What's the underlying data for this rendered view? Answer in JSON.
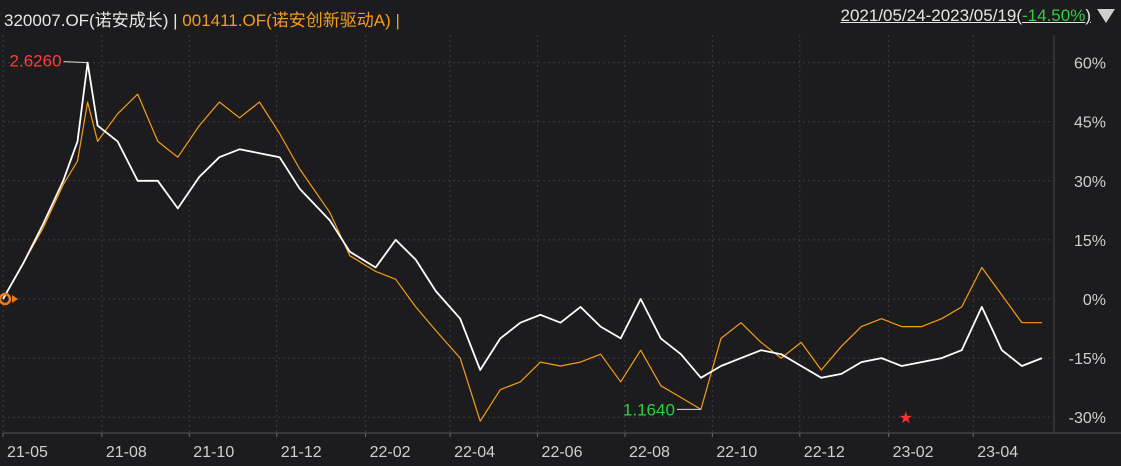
{
  "header": {
    "fund1": "320007.OF(诺安成长)",
    "sep1": "|",
    "fund2": "001411.OF(诺安创新驱动A)",
    "sep2": "|",
    "range": "2021/05/24-2023/05/19(",
    "change": "-14.50%",
    "close": ")"
  },
  "chart_data": {
    "type": "line",
    "x_tick_labels": [
      "21-05",
      "21-08",
      "21-10",
      "21-12",
      "22-02",
      "22-04",
      "22-06",
      "22-08",
      "22-10",
      "22-12",
      "23-02",
      "23-04"
    ],
    "y_tick_labels": [
      "60%",
      "45%",
      "30%",
      "15%",
      "0%",
      "-15%",
      "-30%"
    ],
    "ylim": [
      -34,
      67
    ],
    "xlim": [
      "2021-05-24",
      "2023-05-19"
    ],
    "annotations": {
      "max": "2.6260",
      "min": "1.1640"
    },
    "colors": {
      "fund1": "#ffffff",
      "fund2": "#f59c1a",
      "max": "#ff3b3b",
      "min": "#2fcf3f",
      "grid": "#3c3c3c"
    },
    "series": [
      {
        "name": "320007.OF(诺安成长)",
        "points": [
          [
            "2021-05-24",
            0
          ],
          [
            "2021-06-07",
            9
          ],
          [
            "2021-06-21",
            19
          ],
          [
            "2021-07-05",
            30
          ],
          [
            "2021-07-15",
            40
          ],
          [
            "2021-07-22",
            60
          ],
          [
            "2021-07-29",
            44
          ],
          [
            "2021-08-12",
            40
          ],
          [
            "2021-08-26",
            30
          ],
          [
            "2021-09-09",
            30
          ],
          [
            "2021-09-23",
            23
          ],
          [
            "2021-10-08",
            31
          ],
          [
            "2021-10-22",
            36
          ],
          [
            "2021-11-05",
            38
          ],
          [
            "2021-11-19",
            37
          ],
          [
            "2021-12-03",
            36
          ],
          [
            "2021-12-17",
            28
          ],
          [
            "2022-01-07",
            20
          ],
          [
            "2022-01-21",
            12
          ],
          [
            "2022-02-08",
            8
          ],
          [
            "2022-02-22",
            15
          ],
          [
            "2022-03-08",
            10
          ],
          [
            "2022-03-22",
            2
          ],
          [
            "2022-04-08",
            -5
          ],
          [
            "2022-04-22",
            -18
          ],
          [
            "2022-05-06",
            -10
          ],
          [
            "2022-05-20",
            -6
          ],
          [
            "2022-06-03",
            -4
          ],
          [
            "2022-06-17",
            -6
          ],
          [
            "2022-07-01",
            -2
          ],
          [
            "2022-07-15",
            -7
          ],
          [
            "2022-07-29",
            -10
          ],
          [
            "2022-08-12",
            0
          ],
          [
            "2022-08-26",
            -10
          ],
          [
            "2022-09-09",
            -14
          ],
          [
            "2022-09-23",
            -20
          ],
          [
            "2022-10-07",
            -17
          ],
          [
            "2022-10-21",
            -15
          ],
          [
            "2022-11-04",
            -13
          ],
          [
            "2022-11-18",
            -14
          ],
          [
            "2022-12-02",
            -17
          ],
          [
            "2022-12-16",
            -20
          ],
          [
            "2022-12-30",
            -19
          ],
          [
            "2023-01-13",
            -16
          ],
          [
            "2023-01-27",
            -15
          ],
          [
            "2023-02-10",
            -17
          ],
          [
            "2023-02-24",
            -16
          ],
          [
            "2023-03-10",
            -15
          ],
          [
            "2023-03-24",
            -13
          ],
          [
            "2023-04-07",
            -2
          ],
          [
            "2023-04-21",
            -13
          ],
          [
            "2023-05-05",
            -17
          ],
          [
            "2023-05-19",
            -15
          ]
        ]
      },
      {
        "name": "001411.OF(诺安创新驱动A)",
        "points": [
          [
            "2021-05-24",
            0
          ],
          [
            "2021-06-07",
            9
          ],
          [
            "2021-06-21",
            18
          ],
          [
            "2021-07-05",
            29
          ],
          [
            "2021-07-15",
            35
          ],
          [
            "2021-07-22",
            50
          ],
          [
            "2021-07-29",
            40
          ],
          [
            "2021-08-12",
            47
          ],
          [
            "2021-08-26",
            52
          ],
          [
            "2021-09-09",
            40
          ],
          [
            "2021-09-23",
            36
          ],
          [
            "2021-10-08",
            44
          ],
          [
            "2021-10-22",
            50
          ],
          [
            "2021-11-05",
            46
          ],
          [
            "2021-11-19",
            50
          ],
          [
            "2021-12-03",
            42
          ],
          [
            "2021-12-17",
            33
          ],
          [
            "2022-01-07",
            22
          ],
          [
            "2022-01-21",
            11
          ],
          [
            "2022-02-08",
            7
          ],
          [
            "2022-02-22",
            5
          ],
          [
            "2022-03-08",
            -2
          ],
          [
            "2022-03-22",
            -8
          ],
          [
            "2022-04-08",
            -15
          ],
          [
            "2022-04-22",
            -31
          ],
          [
            "2022-05-06",
            -23
          ],
          [
            "2022-05-20",
            -21
          ],
          [
            "2022-06-03",
            -16
          ],
          [
            "2022-06-17",
            -17
          ],
          [
            "2022-07-01",
            -16
          ],
          [
            "2022-07-15",
            -14
          ],
          [
            "2022-07-29",
            -21
          ],
          [
            "2022-08-12",
            -13
          ],
          [
            "2022-08-26",
            -22
          ],
          [
            "2022-09-09",
            -25
          ],
          [
            "2022-09-23",
            -28
          ],
          [
            "2022-10-07",
            -10
          ],
          [
            "2022-10-21",
            -6
          ],
          [
            "2022-11-04",
            -11
          ],
          [
            "2022-11-18",
            -15
          ],
          [
            "2022-12-02",
            -11
          ],
          [
            "2022-12-16",
            -18
          ],
          [
            "2022-12-30",
            -12
          ],
          [
            "2023-01-13",
            -7
          ],
          [
            "2023-01-27",
            -5
          ],
          [
            "2023-02-10",
            -7
          ],
          [
            "2023-02-24",
            -7
          ],
          [
            "2023-03-10",
            -5
          ],
          [
            "2023-03-24",
            -2
          ],
          [
            "2023-04-07",
            8
          ],
          [
            "2023-04-21",
            1
          ],
          [
            "2023-05-05",
            -6
          ],
          [
            "2023-05-19",
            -6
          ]
        ]
      }
    ]
  }
}
